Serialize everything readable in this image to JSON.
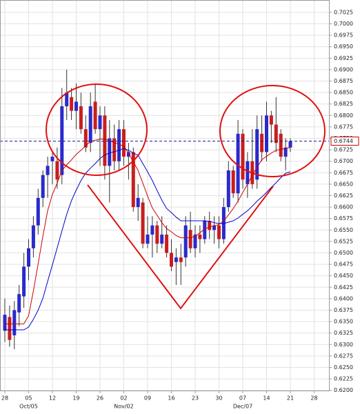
{
  "chart_data": {
    "type": "candlestick",
    "categories": [
      "28",
      null,
      null,
      null,
      null,
      "05",
      null,
      null,
      null,
      null,
      "12",
      null,
      null,
      null,
      null,
      "19",
      null,
      null,
      null,
      null,
      "26",
      null,
      null,
      null,
      null,
      "02",
      null,
      null,
      null,
      null,
      "09",
      null,
      null,
      null,
      null,
      "16",
      null,
      null,
      null,
      null,
      "23",
      null,
      null,
      null,
      null,
      "30",
      null,
      null,
      null,
      null,
      "07",
      null,
      null,
      null,
      null,
      "14",
      null,
      null,
      null,
      null,
      "21",
      null,
      null,
      null,
      null,
      "28"
    ],
    "category_sublabels": [
      null,
      null,
      null,
      null,
      null,
      "Oct/05",
      null,
      null,
      null,
      null,
      null,
      null,
      null,
      null,
      null,
      null,
      null,
      null,
      null,
      null,
      null,
      null,
      null,
      null,
      null,
      "Nov/02",
      null,
      null,
      null,
      null,
      null,
      null,
      null,
      null,
      null,
      null,
      null,
      null,
      null,
      null,
      null,
      null,
      null,
      null,
      null,
      null,
      null,
      null,
      null,
      null,
      "Dec/07",
      null,
      null,
      null,
      null,
      null,
      null,
      null,
      null,
      null,
      null,
      null,
      null,
      null,
      null,
      null
    ],
    "open": [
      0.633,
      0.636,
      0.632,
      0.637,
      0.6405,
      0.647,
      0.651,
      0.656,
      0.662,
      0.667,
      0.67,
      0.67,
      0.667,
      0.682,
      0.684,
      0.681,
      0.682,
      0.677,
      0.674,
      0.683,
      0.677,
      0.68,
      0.669,
      0.675,
      0.67,
      0.677,
      0.671,
      0.672,
      0.66,
      0.661,
      0.652,
      0.654,
      0.656,
      0.652,
      0.654,
      0.65,
      0.648,
      0.649,
      0.649,
      0.655,
      0.651,
      0.654,
      0.653,
      0.657,
      0.655,
      0.656,
      0.653,
      0.66,
      0.668,
      0.663,
      0.676,
      0.665,
      0.67,
      0.666,
      0.676,
      0.672,
      0.68,
      0.678,
      0.676,
      0.671,
      0.673,
      null,
      null,
      null,
      null,
      null
    ],
    "high": [
      0.64,
      0.6385,
      0.6395,
      0.643,
      0.65,
      0.653,
      0.658,
      0.664,
      0.668,
      0.671,
      0.672,
      0.673,
      0.686,
      0.69,
      0.686,
      0.687,
      0.685,
      0.68,
      0.685,
      0.687,
      0.682,
      0.682,
      0.679,
      0.678,
      0.679,
      0.679,
      0.674,
      0.673,
      0.665,
      0.662,
      0.658,
      0.658,
      0.657,
      0.658,
      0.656,
      0.653,
      0.651,
      0.652,
      0.658,
      0.659,
      0.656,
      0.656,
      0.658,
      0.659,
      0.658,
      0.658,
      0.662,
      0.67,
      0.669,
      0.679,
      0.677,
      0.672,
      0.677,
      0.68,
      0.68,
      0.683,
      0.681,
      0.684,
      0.677,
      0.675,
      0.675,
      null,
      null,
      null,
      null,
      null
    ],
    "low": [
      0.6305,
      0.6295,
      0.629,
      0.634,
      0.638,
      0.644,
      0.649,
      0.654,
      0.66,
      0.662,
      0.665,
      0.664,
      0.665,
      0.679,
      0.679,
      0.677,
      0.676,
      0.672,
      0.672,
      0.676,
      0.669,
      0.666,
      0.661,
      0.668,
      0.668,
      0.669,
      0.666,
      0.659,
      0.657,
      0.651,
      0.651,
      0.649,
      0.65,
      0.651,
      0.649,
      0.646,
      0.643,
      0.643,
      0.647,
      0.65,
      0.649,
      0.65,
      0.652,
      0.653,
      0.652,
      0.651,
      0.652,
      0.659,
      0.662,
      0.661,
      0.664,
      0.662,
      0.664,
      0.664,
      0.67,
      0.67,
      0.674,
      0.672,
      0.67,
      0.668,
      0.672,
      null,
      null,
      null,
      null,
      null
    ],
    "close": [
      0.6365,
      0.631,
      0.6375,
      0.641,
      0.647,
      0.651,
      0.656,
      0.662,
      0.667,
      0.669,
      0.671,
      0.666,
      0.682,
      0.685,
      0.681,
      0.683,
      0.677,
      0.673,
      0.682,
      0.677,
      0.68,
      0.669,
      0.675,
      0.67,
      0.677,
      0.671,
      0.672,
      0.66,
      0.662,
      0.652,
      0.654,
      0.656,
      0.652,
      0.654,
      0.65,
      0.647,
      0.649,
      0.648,
      0.656,
      0.651,
      0.654,
      0.653,
      0.657,
      0.655,
      0.656,
      0.653,
      0.66,
      0.668,
      0.663,
      0.676,
      0.666,
      0.67,
      0.665,
      0.677,
      0.672,
      0.68,
      0.678,
      0.674,
      0.671,
      0.673,
      0.6744,
      null,
      null,
      null,
      null,
      null
    ],
    "up_color": "#2a2acc",
    "down_color": "#c81e1e",
    "lines": [
      {
        "color": "#cc0000",
        "values": [
          0.6345,
          0.6345,
          0.6345,
          0.6345,
          0.6345,
          0.6363,
          0.6417,
          0.6476,
          0.6537,
          0.6592,
          0.6628,
          0.6652,
          0.668,
          0.6692,
          0.6703,
          0.6715,
          0.6724,
          0.6734,
          0.6743,
          0.6746,
          0.6748,
          0.6749,
          0.6745,
          0.6741,
          0.6737,
          0.6733,
          0.6717,
          0.6699,
          0.668,
          0.6652,
          0.6624,
          0.6598,
          0.6582,
          0.6566,
          0.6553,
          0.6546,
          0.6538,
          0.6533,
          0.6533,
          0.6533,
          0.6536,
          0.6544,
          0.6552,
          0.6557,
          0.6559,
          0.6562,
          0.657,
          0.6583,
          0.6597,
          0.6613,
          0.6632,
          0.665,
          0.6669,
          0.6687,
          0.6703,
          0.6711,
          0.6718,
          0.6724,
          0.6726,
          0.6728,
          0.673,
          null,
          null,
          null,
          null,
          null
        ]
      },
      {
        "color": "#0000cc",
        "values": [
          0.6332,
          0.6332,
          0.6332,
          0.6332,
          0.6332,
          0.6338,
          0.6355,
          0.6375,
          0.6401,
          0.6438,
          0.6474,
          0.6511,
          0.6548,
          0.6584,
          0.6614,
          0.6637,
          0.6658,
          0.6674,
          0.6685,
          0.6695,
          0.6706,
          0.6714,
          0.6718,
          0.6721,
          0.6724,
          0.6728,
          0.6724,
          0.6718,
          0.6713,
          0.6695,
          0.6677,
          0.6658,
          0.6636,
          0.6615,
          0.6597,
          0.6588,
          0.6578,
          0.657,
          0.657,
          0.657,
          0.657,
          0.657,
          0.657,
          0.6569,
          0.6566,
          0.6564,
          0.6564,
          0.6567,
          0.657,
          0.6576,
          0.6584,
          0.6592,
          0.6602,
          0.6613,
          0.6622,
          0.6632,
          0.6643,
          0.6653,
          0.6664,
          0.6674,
          0.6677,
          null,
          null,
          null,
          null,
          null
        ]
      }
    ],
    "last_price": 0.6744,
    "last_price_color": "#cc0000",
    "ylim": [
      0.6198,
      0.7052
    ],
    "yticks": [
      {
        "value": 0.62,
        "label": "0.6200"
      },
      {
        "value": 0.6225,
        "label": "0.6225"
      },
      {
        "value": 0.625,
        "label": "0.6250"
      },
      {
        "value": 0.6275,
        "label": "0.6275"
      },
      {
        "value": 0.63,
        "label": "0.6300"
      },
      {
        "value": 0.6325,
        "label": "0.6325"
      },
      {
        "value": 0.635,
        "label": "0.6350"
      },
      {
        "value": 0.6375,
        "label": "0.6375"
      },
      {
        "value": 0.64,
        "label": "0.6400"
      },
      {
        "value": 0.6425,
        "label": "0.6425"
      },
      {
        "value": 0.645,
        "label": "0.6450"
      },
      {
        "value": 0.6475,
        "label": "0.6475"
      },
      {
        "value": 0.65,
        "label": "0.6500"
      },
      {
        "value": 0.6525,
        "label": "0.6525"
      },
      {
        "value": 0.655,
        "label": "0.6550"
      },
      {
        "value": 0.6575,
        "label": "0.6575"
      },
      {
        "value": 0.66,
        "label": "0.6600"
      },
      {
        "value": 0.6625,
        "label": "0.6625"
      },
      {
        "value": 0.665,
        "label": "0.6650"
      },
      {
        "value": 0.6675,
        "label": "0.6675"
      },
      {
        "value": 0.67,
        "label": "0.6700"
      },
      {
        "value": 0.6725,
        "label": "0.6725"
      },
      {
        "value": 0.675,
        "label": "0.6750"
      },
      {
        "value": 0.6775,
        "label": "0.6775"
      },
      {
        "value": 0.68,
        "label": "0.6800"
      },
      {
        "value": 0.6825,
        "label": "0.6825"
      },
      {
        "value": 0.685,
        "label": "0.6850"
      },
      {
        "value": 0.6875,
        "label": "0.6875"
      },
      {
        "value": 0.69,
        "label": "0.6900"
      },
      {
        "value": 0.6925,
        "label": "0.6925"
      },
      {
        "value": 0.695,
        "label": "0.6950"
      },
      {
        "value": 0.6975,
        "label": "0.6975"
      },
      {
        "value": 0.7,
        "label": "0.7000"
      },
      {
        "value": 0.7025,
        "label": "0.7025"
      }
    ],
    "grid": true
  }
}
